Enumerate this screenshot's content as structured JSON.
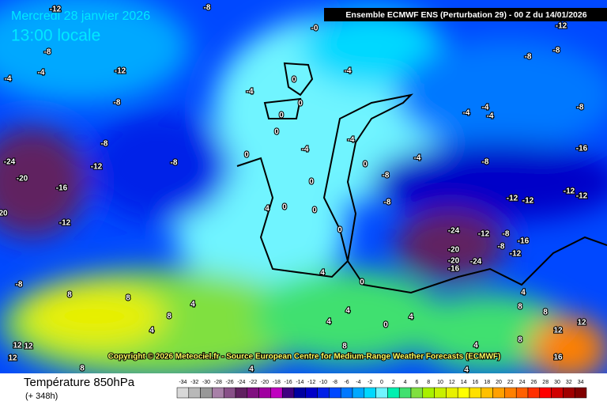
{
  "header": {
    "title": "Mercredi 28 janvier 2026",
    "subtitle": "13:00 locale",
    "model": "Ensemble ECMWF ENS  (Perturbation 29)  -  00 Z du 14/01/2026"
  },
  "copyright": "Copyright © 2026 Meteociel.fr - Source European Centre for Medium-Range Weather Forecasts (ECMWF)",
  "map_labels": [
    "-12",
    "-8",
    "-0",
    "-12",
    "-8",
    "-4",
    "-12",
    "-8",
    "-8",
    "0",
    "-4",
    "-4",
    "-4",
    "-8",
    "0",
    "0",
    "-4",
    "-4",
    "-4",
    "-8",
    "-8",
    "0",
    "-4",
    "-4",
    "-4",
    "-16",
    "-24",
    "-12",
    "-8",
    "0",
    "-8",
    "-8",
    "-20",
    "-16",
    "0",
    "0",
    "-12",
    "-12",
    "-12",
    "-12",
    "4",
    "0",
    "0",
    "-8",
    "20",
    "-12",
    "-24",
    "-12",
    "-8",
    "-16",
    "0",
    "-20",
    "-8",
    "-12",
    "-20",
    "-24",
    "-16",
    "-8",
    "4",
    "0",
    "4",
    "8",
    "8",
    "4",
    "4",
    "4",
    "0",
    "4",
    "8",
    "8",
    "4",
    "8",
    "12",
    "12",
    "8",
    "4",
    "8",
    "12",
    "12",
    "12",
    "16",
    "8",
    "4",
    "4"
  ],
  "legend": {
    "title": "Température 850hPa",
    "subtitle": "(+ 348h)",
    "ticks": [
      -34,
      -32,
      -30,
      -28,
      -26,
      -24,
      -22,
      -20,
      -18,
      -16,
      -14,
      -12,
      -10,
      -8,
      -6,
      -4,
      -2,
      0,
      2,
      4,
      6,
      8,
      10,
      12,
      14,
      16,
      18,
      20,
      22,
      24,
      26,
      28,
      30,
      32,
      34
    ],
    "colors": [
      "#d8d8d8",
      "#b8b8b8",
      "#989898",
      "#a880a8",
      "#885088",
      "#602060",
      "#801080",
      "#a000a0",
      "#c000c0",
      "#400080",
      "#0000a0",
      "#0000c8",
      "#0020e8",
      "#0048ff",
      "#0078ff",
      "#00a8ff",
      "#00d8ff",
      "#70f4ff",
      "#00f0b0",
      "#40e070",
      "#80e040",
      "#a8f000",
      "#c8f000",
      "#e8f000",
      "#ffff00",
      "#ffe000",
      "#ffc000",
      "#ffa000",
      "#ff8000",
      "#ff6000",
      "#ff3000",
      "#ff0000",
      "#d00000",
      "#a00000",
      "#800000"
    ]
  }
}
